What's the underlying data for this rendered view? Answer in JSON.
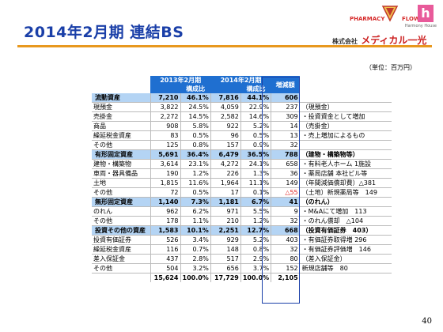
{
  "title": "2014年2月期 連結BS",
  "logo": {
    "pharmacy": "PHARMACY",
    "flower": "FLOWER",
    "h": "h",
    "harmony": "Harmony House",
    "company_prefix": "株式会社",
    "company": "メディカル一光"
  },
  "unit": "（単位：百万円）",
  "page_number": "40",
  "colors": {
    "accent": "#1a3fa8",
    "header": "#1f6fd0",
    "section": "#b4d4f4",
    "rule": "#e8981e",
    "negative": "#e02020"
  },
  "chart_data": {
    "type": "table",
    "headers": {
      "period_2013": "2013年2月期",
      "period_2014": "2014年2月期",
      "ratio": "構成比",
      "change": "増減額"
    },
    "rows": [
      {
        "label": "流動資産",
        "v13": "7,210",
        "r13": "46.1%",
        "v14": "7,816",
        "r14": "44.1%",
        "chg": "606",
        "note": "",
        "section": true
      },
      {
        "label": "現預金",
        "v13": "3,822",
        "r13": "24.5%",
        "v14": "4,059",
        "r14": "22.9%",
        "chg": "237",
        "note": "（現預金）"
      },
      {
        "label": "売掛金",
        "v13": "2,272",
        "r13": "14.5%",
        "v14": "2,582",
        "r14": "14.6%",
        "chg": "309",
        "note": "・投資資金として増加"
      },
      {
        "label": "商品",
        "v13": "908",
        "r13": "5.8%",
        "v14": "922",
        "r14": "5.2%",
        "chg": "14",
        "note": "（売掛金）"
      },
      {
        "label": "繰延税金資産",
        "v13": "83",
        "r13": "0.5%",
        "v14": "96",
        "r14": "0.5%",
        "chg": "13",
        "note": "・売上増加によるもの"
      },
      {
        "label": "その他",
        "v13": "125",
        "r13": "0.8%",
        "v14": "157",
        "r14": "0.9%",
        "chg": "32",
        "note": ""
      },
      {
        "label": "有形固定資産",
        "v13": "5,691",
        "r13": "36.4%",
        "v14": "6,479",
        "r14": "36.5%",
        "chg": "788",
        "note": "（建物・構築物等）",
        "section": true
      },
      {
        "label": "建物・構築物",
        "v13": "3,614",
        "r13": "23.1%",
        "v14": "4,272",
        "r14": "24.1%",
        "chg": "658",
        "note": "・有料老人ホーム 1施設"
      },
      {
        "label": "車両・器具備品",
        "v13": "190",
        "r13": "1.2%",
        "v14": "226",
        "r14": "1.3%",
        "chg": "36",
        "note": "・薬局店舗 本社ビル等"
      },
      {
        "label": "土地",
        "v13": "1,815",
        "r13": "11.6%",
        "v14": "1,964",
        "r14": "11.1%",
        "chg": "149",
        "note": "（年間減価償却費）△381"
      },
      {
        "label": "その他",
        "v13": "72",
        "r13": "0.5%",
        "v14": "17",
        "r14": "0.1%",
        "chg": "△55",
        "note": "（土地）新規薬局等　149",
        "negative": true
      },
      {
        "label": "無形固定資産",
        "v13": "1,140",
        "r13": "7.3%",
        "v14": "1,181",
        "r14": "6.7%",
        "chg": "41",
        "note": "（のれん）",
        "section": true
      },
      {
        "label": "のれん",
        "v13": "962",
        "r13": "6.2%",
        "v14": "971",
        "r14": "5.5%",
        "chg": "9",
        "note": "・M&Aにて増加　113"
      },
      {
        "label": "その他",
        "v13": "178",
        "r13": "1.1%",
        "v14": "210",
        "r14": "1.2%",
        "chg": "32",
        "note": "・のれん償却　△104"
      },
      {
        "label": "投資その他の資産",
        "v13": "1,583",
        "r13": "10.1%",
        "v14": "2,251",
        "r14": "12.7%",
        "chg": "668",
        "note": "（投資有価証券　403）",
        "section": true
      },
      {
        "label": "投資有価証券",
        "v13": "526",
        "r13": "3.4%",
        "v14": "929",
        "r14": "5.2%",
        "chg": "403",
        "note": "・有価証券取得増 296"
      },
      {
        "label": "繰延税金資産",
        "v13": "116",
        "r13": "0.7%",
        "v14": "148",
        "r14": "0.8%",
        "chg": "32",
        "note": "・有価証券評価増　146"
      },
      {
        "label": "差入保証金",
        "v13": "437",
        "r13": "2.8%",
        "v14": "517",
        "r14": "2.9%",
        "chg": "80",
        "note": "（差入保証金）"
      },
      {
        "label": "その他",
        "v13": "504",
        "r13": "3.2%",
        "v14": "656",
        "r14": "3.7%",
        "chg": "152",
        "note": "新規店舗等　80"
      },
      {
        "label": "",
        "v13": "15,624",
        "r13": "100.0%",
        "v14": "17,729",
        "r14": "100.0%",
        "chg": "2,105",
        "note": "",
        "total": true
      }
    ]
  }
}
